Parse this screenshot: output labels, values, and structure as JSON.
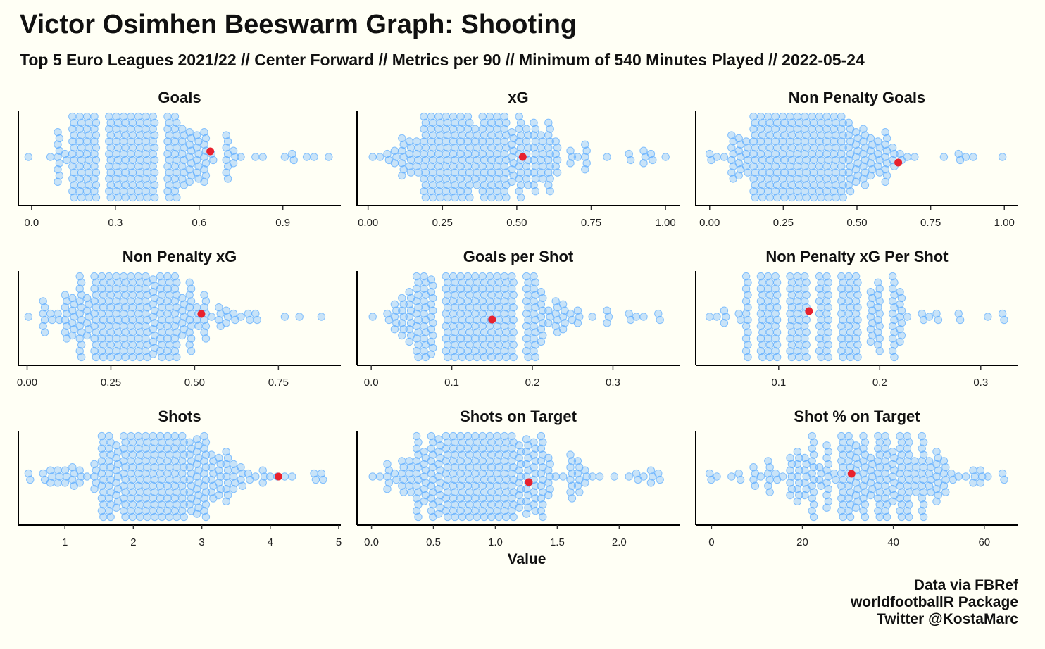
{
  "title": "Victor Osimhen Beeswarm Graph: Shooting",
  "subtitle": "Top 5 Euro Leagues 2021/22 // Center Forward // Metrics per 90 // Minimum of 540 Minutes Played // 2022-05-24",
  "x_axis_label": "Value",
  "caption": [
    "Data via FBRef",
    "worldfootballR Package",
    "Twitter @KostaMarc"
  ],
  "colors": {
    "background": "#fffff5",
    "points": "#61afff",
    "highlight": "#e8212e",
    "axis": "#000000"
  },
  "chart_data": [
    {
      "type": "scatter",
      "title": "Goals",
      "xlim": [
        -0.04,
        1.1
      ],
      "ticks": [
        0.0,
        0.3,
        0.6,
        0.9
      ],
      "tick_labels": [
        "0.0",
        "0.3",
        "0.6",
        "0.9"
      ],
      "distribution": {
        "min": 0.0,
        "max": 1.07,
        "mode": 0.33,
        "n": 360,
        "step": 0.03
      },
      "highlight": {
        "player": "Victor Osimhen",
        "value": 0.64
      }
    },
    {
      "type": "scatter",
      "title": "xG",
      "xlim": [
        -0.03,
        1.04
      ],
      "ticks": [
        0.0,
        0.25,
        0.5,
        0.75,
        1.0
      ],
      "tick_labels": [
        "0.00",
        "0.25",
        "0.50",
        "0.75",
        "1.00"
      ],
      "distribution": {
        "min": 0.01,
        "max": 1.0,
        "mode": 0.36,
        "n": 380,
        "step": 0.02
      },
      "highlight": {
        "player": "Victor Osimhen",
        "value": 0.52
      }
    },
    {
      "type": "scatter",
      "title": "Non Penalty Goals",
      "xlim": [
        -0.04,
        1.04
      ],
      "ticks": [
        0.0,
        0.25,
        0.5,
        0.75,
        1.0
      ],
      "tick_labels": [
        "0.00",
        "0.25",
        "0.50",
        "0.75",
        "1.00"
      ],
      "distribution": {
        "min": 0.0,
        "max": 1.0,
        "mode": 0.3,
        "n": 360,
        "step": 0.025
      },
      "highlight": {
        "player": "Victor Osimhen",
        "value": 0.64
      }
    },
    {
      "type": "scatter",
      "title": "Non Penalty xG",
      "xlim": [
        -0.02,
        0.93
      ],
      "ticks": [
        0.0,
        0.25,
        0.5,
        0.75
      ],
      "tick_labels": [
        "0.00",
        "0.25",
        "0.50",
        "0.75"
      ],
      "distribution": {
        "min": 0.01,
        "max": 0.89,
        "mode": 0.28,
        "n": 380,
        "step": 0.015
      },
      "highlight": {
        "player": "Victor Osimhen",
        "value": 0.52
      }
    },
    {
      "type": "scatter",
      "title": "Goals per Shot",
      "xlim": [
        -0.015,
        0.38
      ],
      "ticks": [
        0.0,
        0.1,
        0.2,
        0.3
      ],
      "tick_labels": [
        "0.0",
        "0.1",
        "0.2",
        "0.3"
      ],
      "distribution": {
        "min": 0.0,
        "max": 0.36,
        "mode": 0.13,
        "n": 400,
        "step": 0.01
      },
      "highlight": {
        "player": "Victor Osimhen",
        "value": 0.15
      }
    },
    {
      "type": "scatter",
      "title": "Non Penalty xG Per Shot",
      "xlim": [
        0.02,
        0.335
      ],
      "ticks": [
        0.1,
        0.2,
        0.3
      ],
      "tick_labels": [
        "0.1",
        "0.2",
        "0.3"
      ],
      "distribution": {
        "min": 0.03,
        "max": 0.32,
        "mode": 0.13,
        "n": 400,
        "step": 0.01
      },
      "highlight": {
        "player": "Victor Osimhen",
        "value": 0.13
      }
    },
    {
      "type": "scatter",
      "title": "Shots",
      "xlim": [
        0.35,
        5.0
      ],
      "ticks": [
        1,
        2,
        3,
        4,
        5
      ],
      "tick_labels": [
        "1",
        "2",
        "3",
        "4",
        "5"
      ],
      "distribution": {
        "min": 0.5,
        "max": 4.8,
        "mode": 2.4,
        "n": 370,
        "step": 0.1
      },
      "highlight": {
        "player": "Victor Osimhen",
        "value": 4.12
      }
    },
    {
      "type": "scatter",
      "title": "Shots on Target",
      "xlim": [
        -0.1,
        2.47
      ],
      "ticks": [
        0.0,
        0.5,
        1.0,
        1.5,
        2.0
      ],
      "tick_labels": [
        "0.0",
        "0.5",
        "1.0",
        "1.5",
        "2.0"
      ],
      "distribution": {
        "min": 0.0,
        "max": 2.35,
        "mode": 0.85,
        "n": 370,
        "step": 0.05
      },
      "highlight": {
        "player": "Victor Osimhen",
        "value": 1.27
      }
    },
    {
      "type": "scatter",
      "title": "Shot % on Target",
      "xlim": [
        -3,
        67
      ],
      "ticks": [
        0,
        20,
        40,
        60
      ],
      "tick_labels": [
        "0",
        "20",
        "40",
        "60"
      ],
      "distribution": {
        "min": 0,
        "max": 64,
        "mode": 37,
        "n": 370,
        "step": 1
      },
      "highlight": {
        "player": "Victor Osimhen",
        "value": 30.8
      }
    }
  ]
}
